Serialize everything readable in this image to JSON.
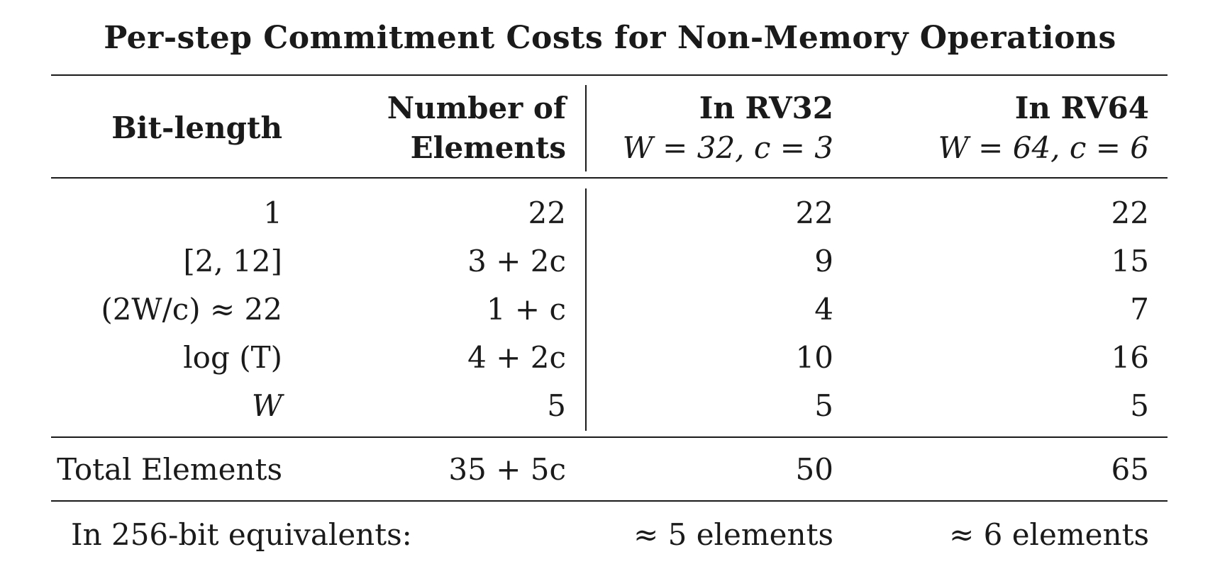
{
  "title": "Per-step Commitment Costs for Non-Memory Operations",
  "header": {
    "bit_length": "Bit-length",
    "num_elements_line1": "Number of",
    "num_elements_line2": "Elements",
    "rv32_line1": "In RV32",
    "rv32_line2": "W = 32, c = 3",
    "rv64_line1": "In RV64",
    "rv64_line2": "W = 64, c = 6"
  },
  "rows": [
    {
      "bit_length": "1",
      "num_elements": "22",
      "rv32": "22",
      "rv64": "22"
    },
    {
      "bit_length": "[2, 12]",
      "num_elements": "3 + 2c",
      "rv32": "9",
      "rv64": "15"
    },
    {
      "bit_length": "(2W/c) ≈ 22",
      "num_elements": "1 + c",
      "rv32": "4",
      "rv64": "7"
    },
    {
      "bit_length": "log (T)",
      "num_elements": "4 + 2c",
      "rv32": "10",
      "rv64": "16"
    },
    {
      "bit_length": "W",
      "num_elements": "5",
      "rv32": "5",
      "rv64": "5"
    }
  ],
  "total": {
    "label": "Total Elements",
    "num_elements": "35 + 5c",
    "rv32": "50",
    "rv64": "65"
  },
  "equivalents": {
    "label": "In 256-bit equivalents:",
    "rv32": "≈ 5 elements",
    "rv64": "≈ 6 elements"
  }
}
